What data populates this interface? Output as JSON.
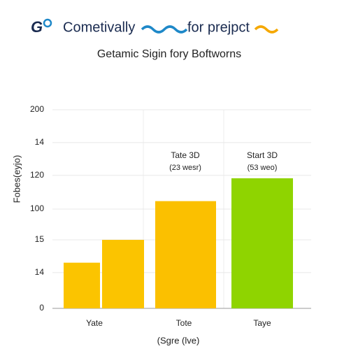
{
  "header": {
    "logo": "G",
    "brand": "Cometivally",
    "tagline": "for prejpct"
  },
  "chart_data": {
    "type": "bar",
    "title": "Getamic Sigin fory Boftworns",
    "y_label": "Fobes(eyjo)",
    "x_label": "(Sgre (lve)",
    "categories": [
      "Yate",
      null,
      "Tote",
      "Taye"
    ],
    "values": [
      46,
      69,
      108,
      131
    ],
    "colors": [
      "#fbc400",
      "#fbc400",
      "#fbc000",
      "#8fd400"
    ],
    "ylim": [
      0,
      200
    ],
    "yticks": [
      0,
      {
        "value": 36,
        "label": "14"
      },
      {
        "value": 69,
        "label": "15"
      },
      100,
      {
        "value": 134,
        "label": "120"
      },
      {
        "value": 167,
        "label": "14"
      },
      200
    ],
    "grid": true,
    "annotations": [
      {
        "text": "Tate 3D",
        "sub": "(23 wesr)"
      },
      {
        "text": "Start 3D",
        "sub": "(53 weo)"
      }
    ]
  }
}
